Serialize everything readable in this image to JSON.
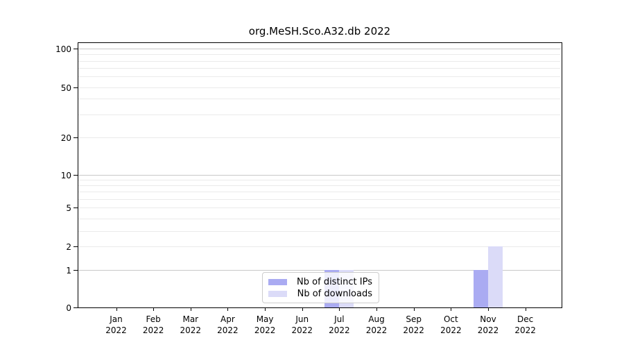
{
  "chart_data": {
    "type": "bar",
    "title": "org.MeSH.Sco.A32.db 2022",
    "categories": [
      {
        "month": "Jan",
        "year": "2022"
      },
      {
        "month": "Feb",
        "year": "2022"
      },
      {
        "month": "Mar",
        "year": "2022"
      },
      {
        "month": "Apr",
        "year": "2022"
      },
      {
        "month": "May",
        "year": "2022"
      },
      {
        "month": "Jun",
        "year": "2022"
      },
      {
        "month": "Jul",
        "year": "2022"
      },
      {
        "month": "Aug",
        "year": "2022"
      },
      {
        "month": "Sep",
        "year": "2022"
      },
      {
        "month": "Oct",
        "year": "2022"
      },
      {
        "month": "Nov",
        "year": "2022"
      },
      {
        "month": "Dec",
        "year": "2022"
      }
    ],
    "series": [
      {
        "name": "Nb of distinct IPs",
        "color": "#aaabf2",
        "values": [
          0,
          0,
          0,
          0,
          0,
          0,
          1,
          0,
          0,
          0,
          1,
          0
        ]
      },
      {
        "name": "Nb of downloads",
        "color": "#dbdbf8",
        "values": [
          0,
          0,
          0,
          0,
          0,
          0,
          1,
          0,
          0,
          0,
          2,
          0
        ]
      }
    ],
    "y_axis": {
      "scale": "symlog",
      "tick_labels": [
        0,
        1,
        2,
        5,
        10,
        20,
        50,
        100
      ],
      "range": [
        0,
        111
      ]
    },
    "x_axis": {
      "tick_label_lines": 2
    },
    "grid": {
      "horizontal": true,
      "major_color": "#c8c8c8",
      "minor_color": "#eaeaea"
    },
    "legend": {
      "position": "inside-bottom-center",
      "border_color": "#cccccc"
    },
    "colors": {
      "axis": "#000000",
      "background": "#ffffff"
    }
  }
}
